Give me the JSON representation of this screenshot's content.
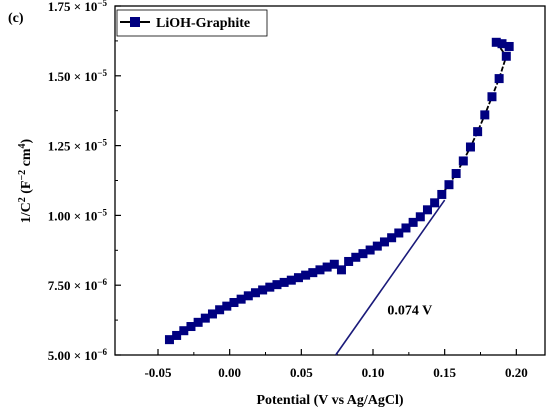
{
  "chart_data": {
    "type": "scatter",
    "panel_label": "(c)",
    "xlabel": "Potential (V vs Ag/AgCl)",
    "ylabel": {
      "base": "1/C",
      "exp1": "2",
      "mid": " (F",
      "exp2": "−2",
      "mid2": " cm",
      "exp3": "4",
      "end": ")"
    },
    "xlim": [
      -0.08,
      0.22
    ],
    "ylim": [
      5e-06,
      1.75e-05
    ],
    "x_ticks": [
      {
        "value": -0.05,
        "label": "-0.05"
      },
      {
        "value": 0.0,
        "label": "0.00"
      },
      {
        "value": 0.05,
        "label": "0.05"
      },
      {
        "value": 0.1,
        "label": "0.10"
      },
      {
        "value": 0.15,
        "label": "0.15"
      },
      {
        "value": 0.2,
        "label": "0.20"
      }
    ],
    "y_ticks": [
      {
        "value": 5e-06,
        "mantissa": "5.00",
        "exp": "−6"
      },
      {
        "value": 7.5e-06,
        "mantissa": "7.50",
        "exp": "−6"
      },
      {
        "value": 1e-05,
        "mantissa": "1.00",
        "exp": "−5"
      },
      {
        "value": 1.25e-05,
        "mantissa": "1.25",
        "exp": "−5"
      },
      {
        "value": 1.5e-05,
        "mantissa": "1.50",
        "exp": "−5"
      },
      {
        "value": 1.75e-05,
        "mantissa": "1.75",
        "exp": "−5"
      }
    ],
    "times_sign": "×",
    "tick_base": "10",
    "series": [
      {
        "name": "LiOH-Graphite",
        "color": "#000080",
        "line_color": "#000000",
        "marker": "square",
        "points": [
          [
            -0.042,
            5.55e-06
          ],
          [
            -0.037,
            5.7e-06
          ],
          [
            -0.032,
            5.87e-06
          ],
          [
            -0.027,
            6.02e-06
          ],
          [
            -0.022,
            6.17e-06
          ],
          [
            -0.017,
            6.32e-06
          ],
          [
            -0.012,
            6.47e-06
          ],
          [
            -0.007,
            6.62e-06
          ],
          [
            -0.002,
            6.75e-06
          ],
          [
            0.003,
            6.88e-06
          ],
          [
            0.008,
            7e-06
          ],
          [
            0.013,
            7.12e-06
          ],
          [
            0.018,
            7.23e-06
          ],
          [
            0.023,
            7.33e-06
          ],
          [
            0.028,
            7.43e-06
          ],
          [
            0.033,
            7.52e-06
          ],
          [
            0.038,
            7.6e-06
          ],
          [
            0.043,
            7.68e-06
          ],
          [
            0.048,
            7.77e-06
          ],
          [
            0.053,
            7.86e-06
          ],
          [
            0.058,
            7.95e-06
          ],
          [
            0.063,
            8.05e-06
          ],
          [
            0.068,
            8.15e-06
          ],
          [
            0.073,
            8.25e-06
          ],
          [
            0.078,
            8.05e-06
          ],
          [
            0.083,
            8.35e-06
          ],
          [
            0.088,
            8.5e-06
          ],
          [
            0.093,
            8.63e-06
          ],
          [
            0.098,
            8.76e-06
          ],
          [
            0.103,
            8.9e-06
          ],
          [
            0.108,
            9.05e-06
          ],
          [
            0.113,
            9.2e-06
          ],
          [
            0.118,
            9.37e-06
          ],
          [
            0.123,
            9.55e-06
          ],
          [
            0.128,
            9.75e-06
          ],
          [
            0.133,
            9.95e-06
          ],
          [
            0.138,
            1.02e-05
          ],
          [
            0.143,
            1.045e-05
          ],
          [
            0.148,
            1.075e-05
          ],
          [
            0.153,
            1.11e-05
          ],
          [
            0.158,
            1.15e-05
          ],
          [
            0.163,
            1.195e-05
          ],
          [
            0.168,
            1.245e-05
          ],
          [
            0.173,
            1.3e-05
          ],
          [
            0.178,
            1.36e-05
          ],
          [
            0.183,
            1.425e-05
          ],
          [
            0.188,
            1.49e-05
          ],
          [
            0.193,
            1.57e-05
          ],
          [
            0.186,
            1.62e-05
          ],
          [
            0.19,
            1.615e-05
          ],
          [
            0.195,
            1.605e-05
          ]
        ]
      }
    ],
    "fit_line": {
      "color": "#1a1a7a",
      "from": [
        0.074,
        5e-06
      ],
      "to": [
        0.15,
        1.055e-05
      ]
    },
    "annotation": {
      "text": "0.074 V",
      "x": 0.11,
      "y": 6.45e-06
    },
    "legend_position": "top-left"
  }
}
